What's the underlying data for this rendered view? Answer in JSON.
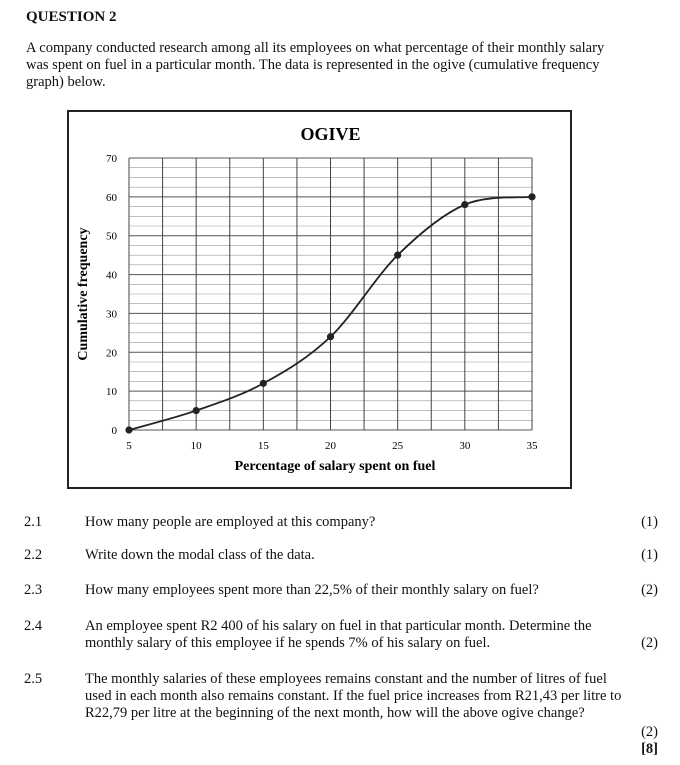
{
  "heading": "QUESTION 2",
  "intro": "A company conducted research among all its employees on what percentage of their monthly salary was spent on fuel in a particular month. The data is represented in the ogive (cumulative frequency graph) below.",
  "chart_data": {
    "type": "line",
    "title": "OGIVE",
    "xlabel": "Percentage of salary spent on fuel",
    "ylabel": "Cumulative frequency",
    "x_ticks": [
      "5",
      "10",
      "15",
      "20",
      "25",
      "30",
      "35"
    ],
    "y_ticks": [
      "0",
      "10",
      "20",
      "30",
      "40",
      "50",
      "60",
      "70"
    ],
    "xlim": [
      5,
      35
    ],
    "ylim": [
      0,
      70
    ],
    "grid": true,
    "points": [
      {
        "x": 5,
        "y": 0
      },
      {
        "x": 10,
        "y": 5
      },
      {
        "x": 15,
        "y": 12
      },
      {
        "x": 20,
        "y": 24
      },
      {
        "x": 25,
        "y": 45
      },
      {
        "x": 30,
        "y": 58
      },
      {
        "x": 35,
        "y": 60
      }
    ]
  },
  "questions": [
    {
      "num": "2.1",
      "text": "How many people are employed at this company?",
      "marks": "(1)"
    },
    {
      "num": "2.2",
      "text": "Write down the modal class of the data.",
      "marks": "(1)"
    },
    {
      "num": "2.3",
      "text": "How many employees spent more than 22,5% of their monthly salary on fuel?",
      "marks": "(2)"
    },
    {
      "num": "2.4",
      "text": "An employee spent R2 400 of his salary on fuel in that particular month. Determine the monthly salary of this employee if he spends 7% of his salary on fuel.",
      "marks": "(2)"
    },
    {
      "num": "2.5",
      "text": "The monthly salaries of these employees remains constant and the number of litres of fuel used in each month also remains constant. If the fuel price increases from R21,43 per litre to R22,79 per litre at the beginning of the next month, how will the above ogive change?",
      "marks": "(2)"
    }
  ],
  "total": "[8]"
}
